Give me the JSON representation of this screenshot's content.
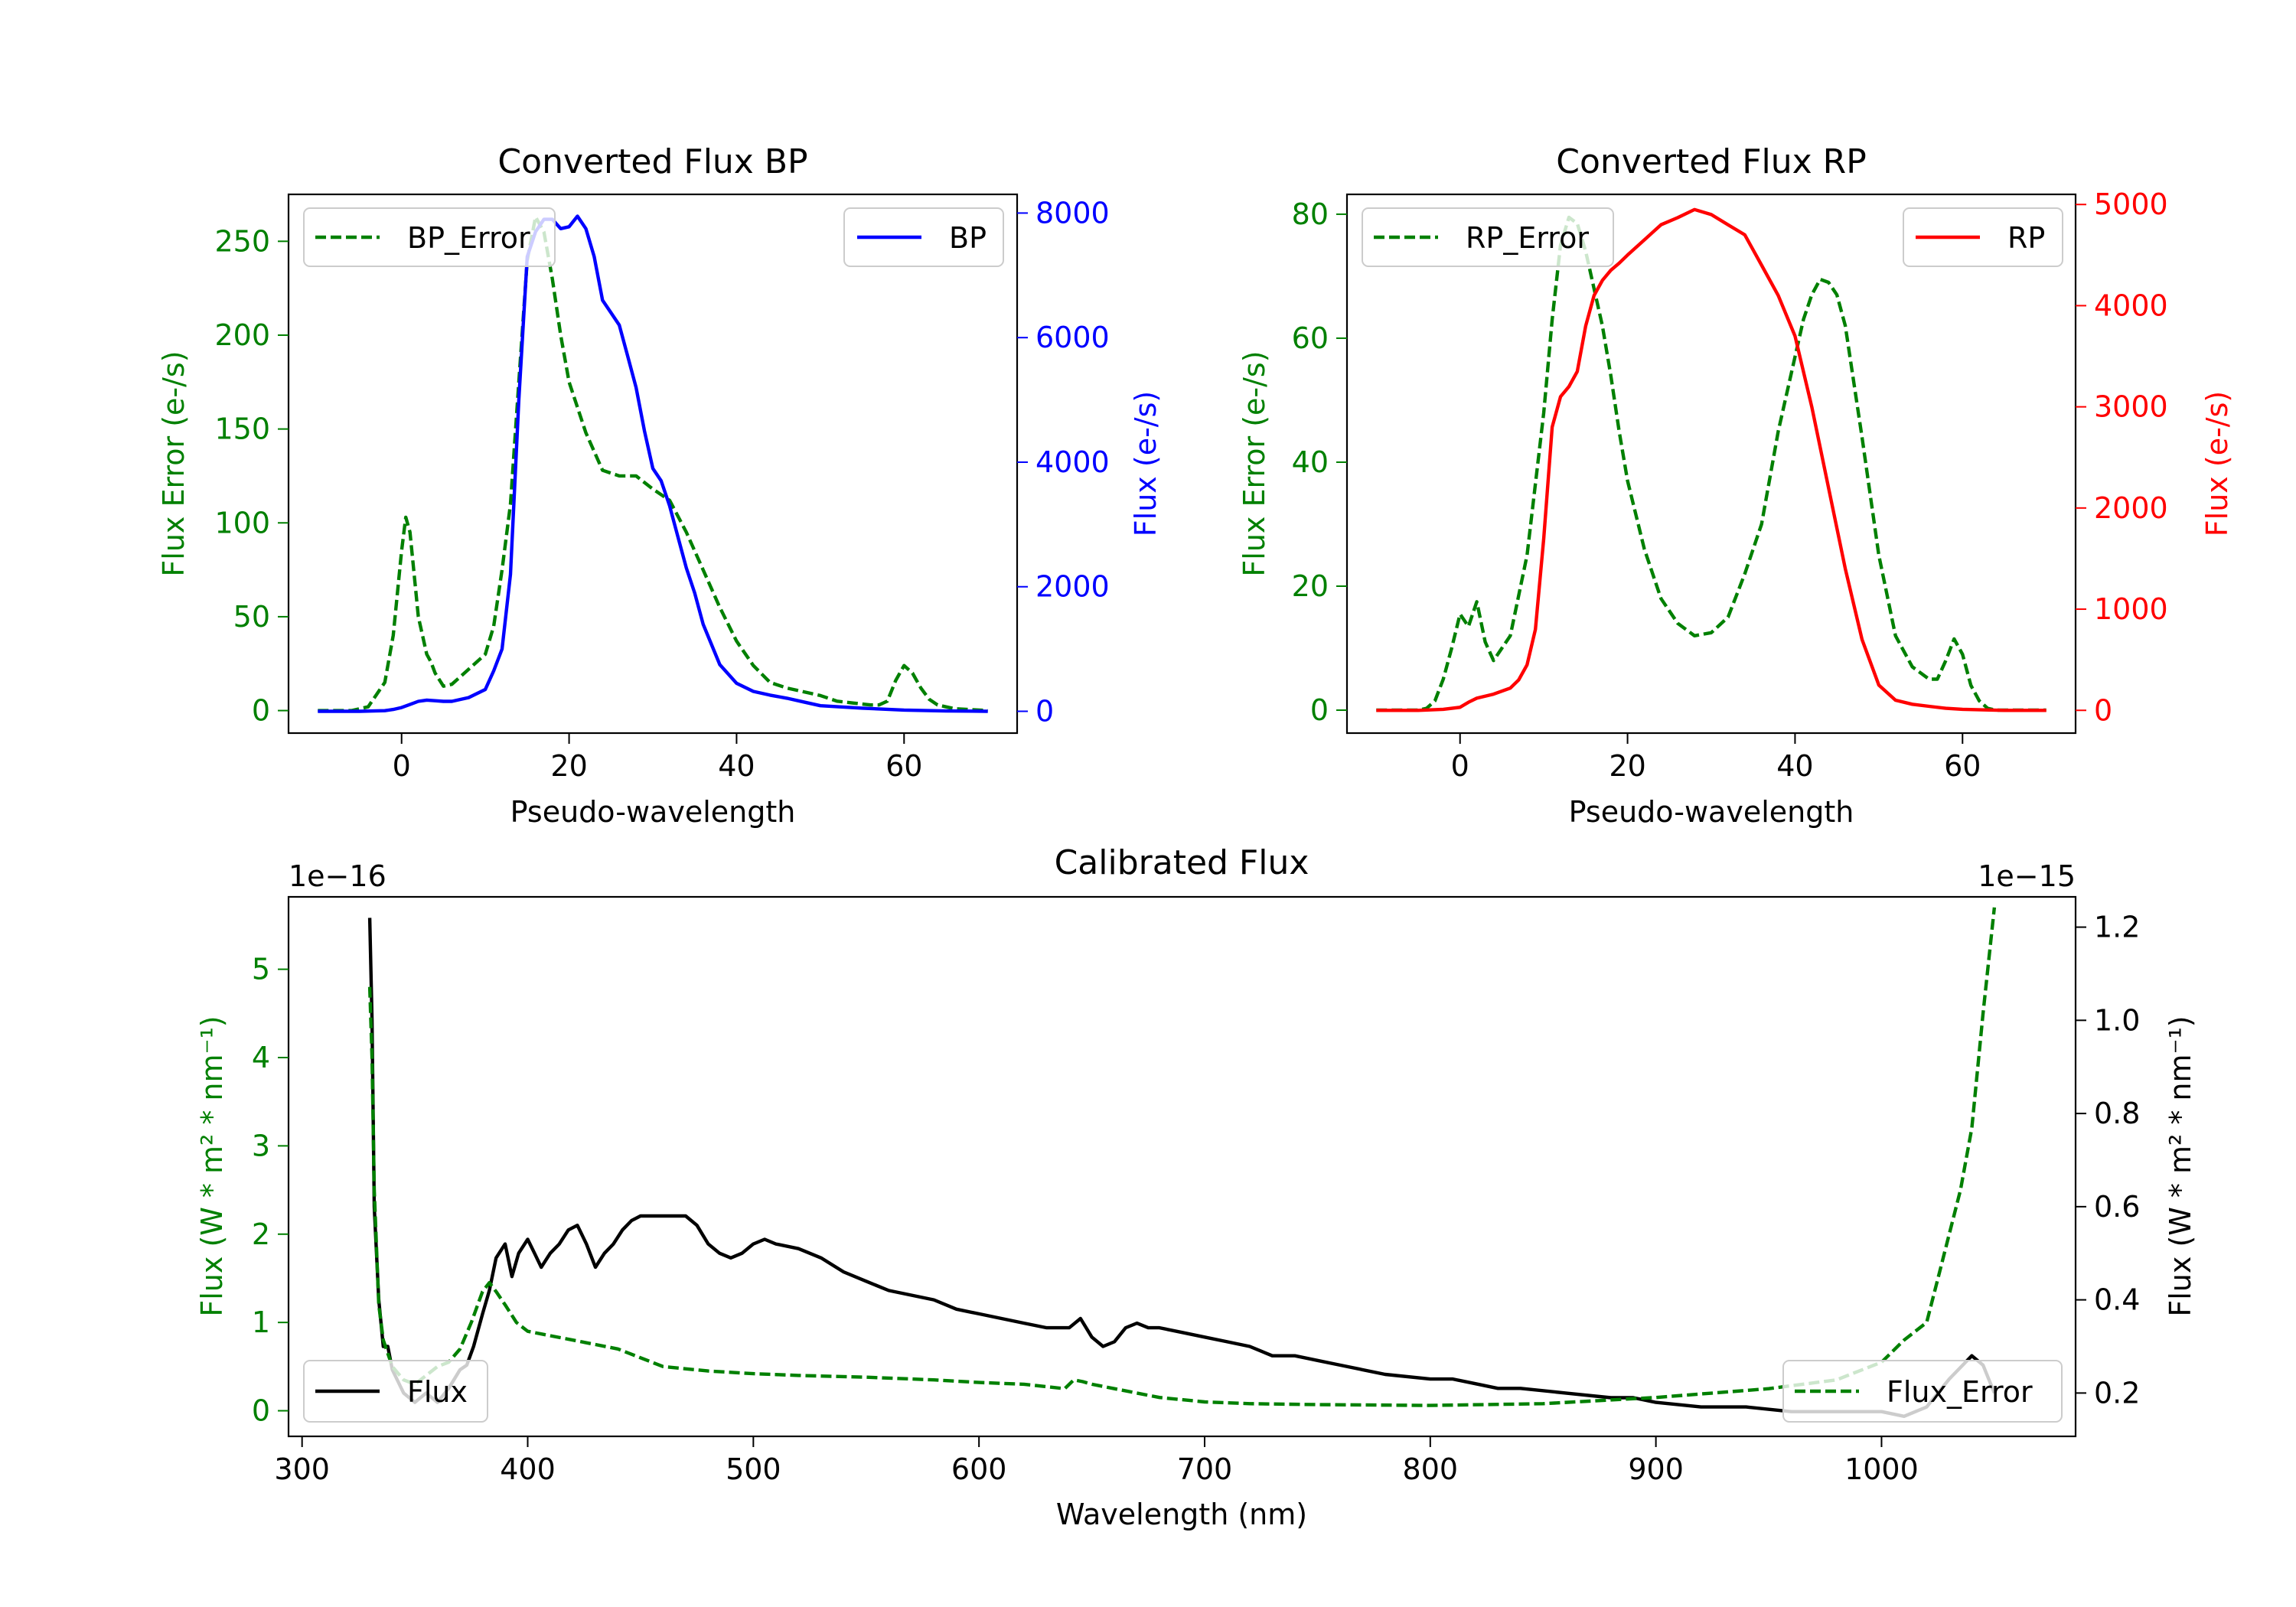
{
  "colors": {
    "green": "#008000",
    "blue": "#0000ff",
    "red": "#ff0000",
    "black": "#000000"
  },
  "chart_data": [
    {
      "id": "bp",
      "type": "line",
      "title": "Converted Flux BP",
      "xlabel": "Pseudo-wavelength",
      "ylabel_left": "Flux Error (e-/s)",
      "ylabel_right": "Flux (e-/s)",
      "xlim": [
        -13.5,
        73.5
      ],
      "ylim_left": [
        -12,
        275
      ],
      "ylim_right": [
        -350,
        8300
      ],
      "xticks": [
        0,
        20,
        40,
        60
      ],
      "yticks_left": [
        0,
        50,
        100,
        150,
        200,
        250
      ],
      "yticks_right": [
        0,
        2000,
        4000,
        6000,
        8000
      ],
      "legend_left": "BP_Error",
      "legend_right": "BP",
      "series": [
        {
          "name": "BP_Error",
          "axis": "left",
          "style": "dashed",
          "color": "#008000",
          "x": [
            -10,
            -6,
            -4,
            -2,
            -1,
            0,
            0.5,
            1,
            2,
            3,
            3.5,
            4,
            5,
            6,
            8,
            10,
            11,
            12,
            13,
            14,
            15,
            16,
            17,
            18,
            19,
            20,
            22,
            24,
            26,
            28,
            30,
            32,
            34,
            36,
            38,
            40,
            42,
            44,
            46,
            48,
            50,
            52,
            54,
            56,
            57,
            58,
            59,
            60,
            61,
            62,
            63,
            64,
            65,
            66,
            70
          ],
          "values": [
            0,
            0,
            2,
            15,
            40,
            85,
            103,
            95,
            50,
            30,
            26,
            20,
            13,
            14,
            22,
            30,
            45,
            75,
            110,
            175,
            240,
            263,
            255,
            230,
            200,
            175,
            148,
            128,
            125,
            125,
            118,
            112,
            95,
            75,
            55,
            37,
            24,
            15,
            12,
            10,
            8,
            5,
            4,
            3,
            3,
            5,
            16,
            24,
            20,
            12,
            6,
            3,
            2,
            1,
            0
          ]
        },
        {
          "name": "BP",
          "axis": "right",
          "style": "solid",
          "color": "#0000ff",
          "x": [
            -10,
            -5,
            -2,
            -1,
            0,
            1,
            2,
            3,
            4,
            5,
            6,
            8,
            10,
            11,
            12,
            13,
            14,
            15,
            16,
            17,
            18,
            19,
            20,
            21,
            22,
            23,
            24,
            25,
            26,
            27,
            28,
            29,
            30,
            31,
            32,
            33,
            34,
            35,
            36,
            38,
            40,
            42,
            44,
            46,
            48,
            50,
            55,
            60,
            65,
            70
          ],
          "values": [
            0,
            0,
            10,
            30,
            60,
            110,
            160,
            180,
            170,
            160,
            160,
            220,
            350,
            650,
            1000,
            2200,
            5000,
            7300,
            7700,
            7900,
            7900,
            7750,
            7780,
            7950,
            7750,
            7300,
            6600,
            6400,
            6200,
            5700,
            5200,
            4500,
            3900,
            3700,
            3300,
            2800,
            2300,
            1900,
            1400,
            750,
            450,
            320,
            260,
            210,
            150,
            90,
            50,
            20,
            5,
            0
          ]
        }
      ]
    },
    {
      "id": "rp",
      "type": "line",
      "title": "Converted Flux RP",
      "xlabel": "Pseudo-wavelength",
      "ylabel_left": "Flux Error (e-/s)",
      "ylabel_right": "Flux (e-/s)",
      "xlim": [
        -13.5,
        73.5
      ],
      "ylim_left": [
        -3.7,
        83.2
      ],
      "ylim_right": [
        -225,
        5100
      ],
      "xticks": [
        0,
        20,
        40,
        60
      ],
      "yticks_left": [
        0,
        20,
        40,
        60,
        80
      ],
      "yticks_right": [
        0,
        1000,
        2000,
        3000,
        4000,
        5000
      ],
      "legend_left": "RP_Error",
      "legend_right": "RP",
      "series": [
        {
          "name": "RP_Error",
          "axis": "left",
          "style": "dashed",
          "color": "#008000",
          "x": [
            -10,
            -5,
            -4,
            -3,
            -2,
            -1,
            0,
            1,
            2,
            3,
            4,
            5,
            6,
            8,
            10,
            11,
            12,
            13,
            14,
            15,
            16,
            17,
            18,
            19,
            20,
            22,
            24,
            26,
            28,
            30,
            32,
            34,
            36,
            38,
            40,
            41,
            42,
            43,
            44,
            45,
            46,
            48,
            50,
            52,
            54,
            56,
            57,
            58,
            59,
            60,
            61,
            62,
            63,
            64,
            65,
            70
          ],
          "values": [
            0,
            0,
            0.3,
            1.5,
            5,
            10,
            15.5,
            13.5,
            17.5,
            11,
            8,
            10,
            12,
            25,
            48,
            63,
            75,
            79.5,
            78.5,
            74,
            68,
            62,
            54,
            45,
            37,
            26,
            18,
            14,
            12,
            12.5,
            15,
            22,
            30,
            45,
            57,
            63,
            67,
            69.5,
            69,
            67,
            62,
            44,
            25,
            12,
            7,
            5,
            5,
            8,
            11.5,
            9,
            4,
            1.5,
            0.3,
            0,
            0,
            0
          ]
        },
        {
          "name": "RP",
          "axis": "right",
          "style": "solid",
          "color": "#ff0000",
          "x": [
            -10,
            -5,
            -2,
            0,
            1,
            2,
            4,
            6,
            7,
            8,
            9,
            10,
            11,
            12,
            13,
            14,
            15,
            16,
            17,
            18,
            19,
            20,
            22,
            24,
            26,
            28,
            30,
            32,
            34,
            36,
            38,
            40,
            42,
            44,
            46,
            48,
            50,
            52,
            54,
            56,
            58,
            60,
            65,
            70
          ],
          "values": [
            0,
            0,
            10,
            30,
            80,
            120,
            160,
            220,
            300,
            450,
            800,
            1700,
            2800,
            3100,
            3200,
            3350,
            3800,
            4100,
            4250,
            4350,
            4420,
            4500,
            4650,
            4800,
            4870,
            4950,
            4900,
            4800,
            4700,
            4400,
            4100,
            3700,
            3000,
            2200,
            1400,
            700,
            250,
            100,
            60,
            40,
            20,
            10,
            0,
            0
          ]
        }
      ]
    },
    {
      "id": "calib",
      "type": "line",
      "title": "Calibrated Flux",
      "xlabel": "Wavelength (nm)",
      "ylabel_left": "Flux (W * m² * nm⁻¹)",
      "ylabel_right": "Flux (W * m² * nm⁻¹)",
      "offset_left": "1e−16",
      "offset_right": "1e−15",
      "xlim": [
        294,
        1086
      ],
      "ylim_left": [
        -0.29,
        5.82
      ],
      "ylim_right": [
        0.107,
        1.265
      ],
      "xticks": [
        300,
        400,
        500,
        600,
        700,
        800,
        900,
        1000
      ],
      "yticks_left": [
        0,
        1,
        2,
        3,
        4,
        5
      ],
      "yticks_right": [
        0.2,
        0.4,
        0.6,
        0.8,
        1.0,
        1.2
      ],
      "ytick_labels_right": [
        "0.2",
        "0.4",
        "0.6",
        "0.8",
        "1.0",
        "1.2"
      ],
      "legend_left": "Flux",
      "legend_right": "Flux_Error",
      "series": [
        {
          "name": "Flux",
          "axis": "right",
          "style": "solid",
          "color": "#000000",
          "x": [
            330,
            331,
            332,
            334,
            336,
            338,
            340,
            345,
            350,
            355,
            360,
            365,
            370,
            373,
            376,
            380,
            383,
            386,
            390,
            393,
            396,
            400,
            403,
            406,
            410,
            414,
            418,
            422,
            426,
            430,
            434,
            438,
            442,
            446,
            450,
            460,
            470,
            475,
            480,
            485,
            490,
            495,
            500,
            505,
            510,
            520,
            530,
            540,
            550,
            560,
            570,
            580,
            590,
            600,
            610,
            620,
            630,
            635,
            640,
            645,
            650,
            655,
            660,
            665,
            670,
            675,
            680,
            690,
            700,
            710,
            720,
            730,
            740,
            750,
            760,
            780,
            800,
            810,
            820,
            830,
            840,
            860,
            880,
            890,
            900,
            920,
            940,
            960,
            980,
            1000,
            1010,
            1020,
            1030,
            1040,
            1045,
            1050
          ],
          "values": [
            1.22,
            1.0,
            0.6,
            0.4,
            0.3,
            0.3,
            0.25,
            0.2,
            0.18,
            0.2,
            0.18,
            0.21,
            0.25,
            0.26,
            0.3,
            0.37,
            0.42,
            0.49,
            0.52,
            0.45,
            0.5,
            0.53,
            0.5,
            0.47,
            0.5,
            0.52,
            0.55,
            0.56,
            0.52,
            0.47,
            0.5,
            0.52,
            0.55,
            0.57,
            0.58,
            0.58,
            0.58,
            0.56,
            0.52,
            0.5,
            0.49,
            0.5,
            0.52,
            0.53,
            0.52,
            0.51,
            0.49,
            0.46,
            0.44,
            0.42,
            0.41,
            0.4,
            0.38,
            0.37,
            0.36,
            0.35,
            0.34,
            0.34,
            0.34,
            0.36,
            0.32,
            0.3,
            0.31,
            0.34,
            0.35,
            0.34,
            0.34,
            0.33,
            0.32,
            0.31,
            0.3,
            0.28,
            0.28,
            0.27,
            0.26,
            0.24,
            0.23,
            0.23,
            0.22,
            0.21,
            0.21,
            0.2,
            0.19,
            0.19,
            0.18,
            0.17,
            0.17,
            0.16,
            0.16,
            0.16,
            0.15,
            0.17,
            0.23,
            0.28,
            0.26,
            0.2
          ]
        },
        {
          "name": "Flux_Error",
          "axis": "left",
          "style": "dashed",
          "color": "#008000",
          "x": [
            330,
            331,
            332,
            334,
            336,
            340,
            345,
            350,
            355,
            360,
            365,
            370,
            375,
            380,
            383,
            386,
            390,
            395,
            400,
            410,
            420,
            430,
            440,
            450,
            460,
            480,
            500,
            520,
            550,
            580,
            600,
            620,
            638,
            642,
            646,
            650,
            660,
            680,
            700,
            720,
            750,
            800,
            850,
            900,
            950,
            980,
            1000,
            1010,
            1020,
            1025,
            1030,
            1035,
            1040,
            1045,
            1050
          ],
          "values": [
            4.8,
            4.0,
            2.5,
            1.2,
            0.8,
            0.5,
            0.35,
            0.3,
            0.4,
            0.5,
            0.55,
            0.7,
            1.0,
            1.35,
            1.45,
            1.35,
            1.2,
            1.0,
            0.9,
            0.85,
            0.8,
            0.75,
            0.7,
            0.6,
            0.5,
            0.45,
            0.42,
            0.4,
            0.38,
            0.35,
            0.32,
            0.3,
            0.25,
            0.35,
            0.33,
            0.3,
            0.25,
            0.15,
            0.1,
            0.08,
            0.07,
            0.06,
            0.08,
            0.15,
            0.25,
            0.35,
            0.55,
            0.8,
            1.0,
            1.5,
            2.0,
            2.5,
            3.2,
            4.5,
            5.7
          ]
        }
      ]
    }
  ]
}
